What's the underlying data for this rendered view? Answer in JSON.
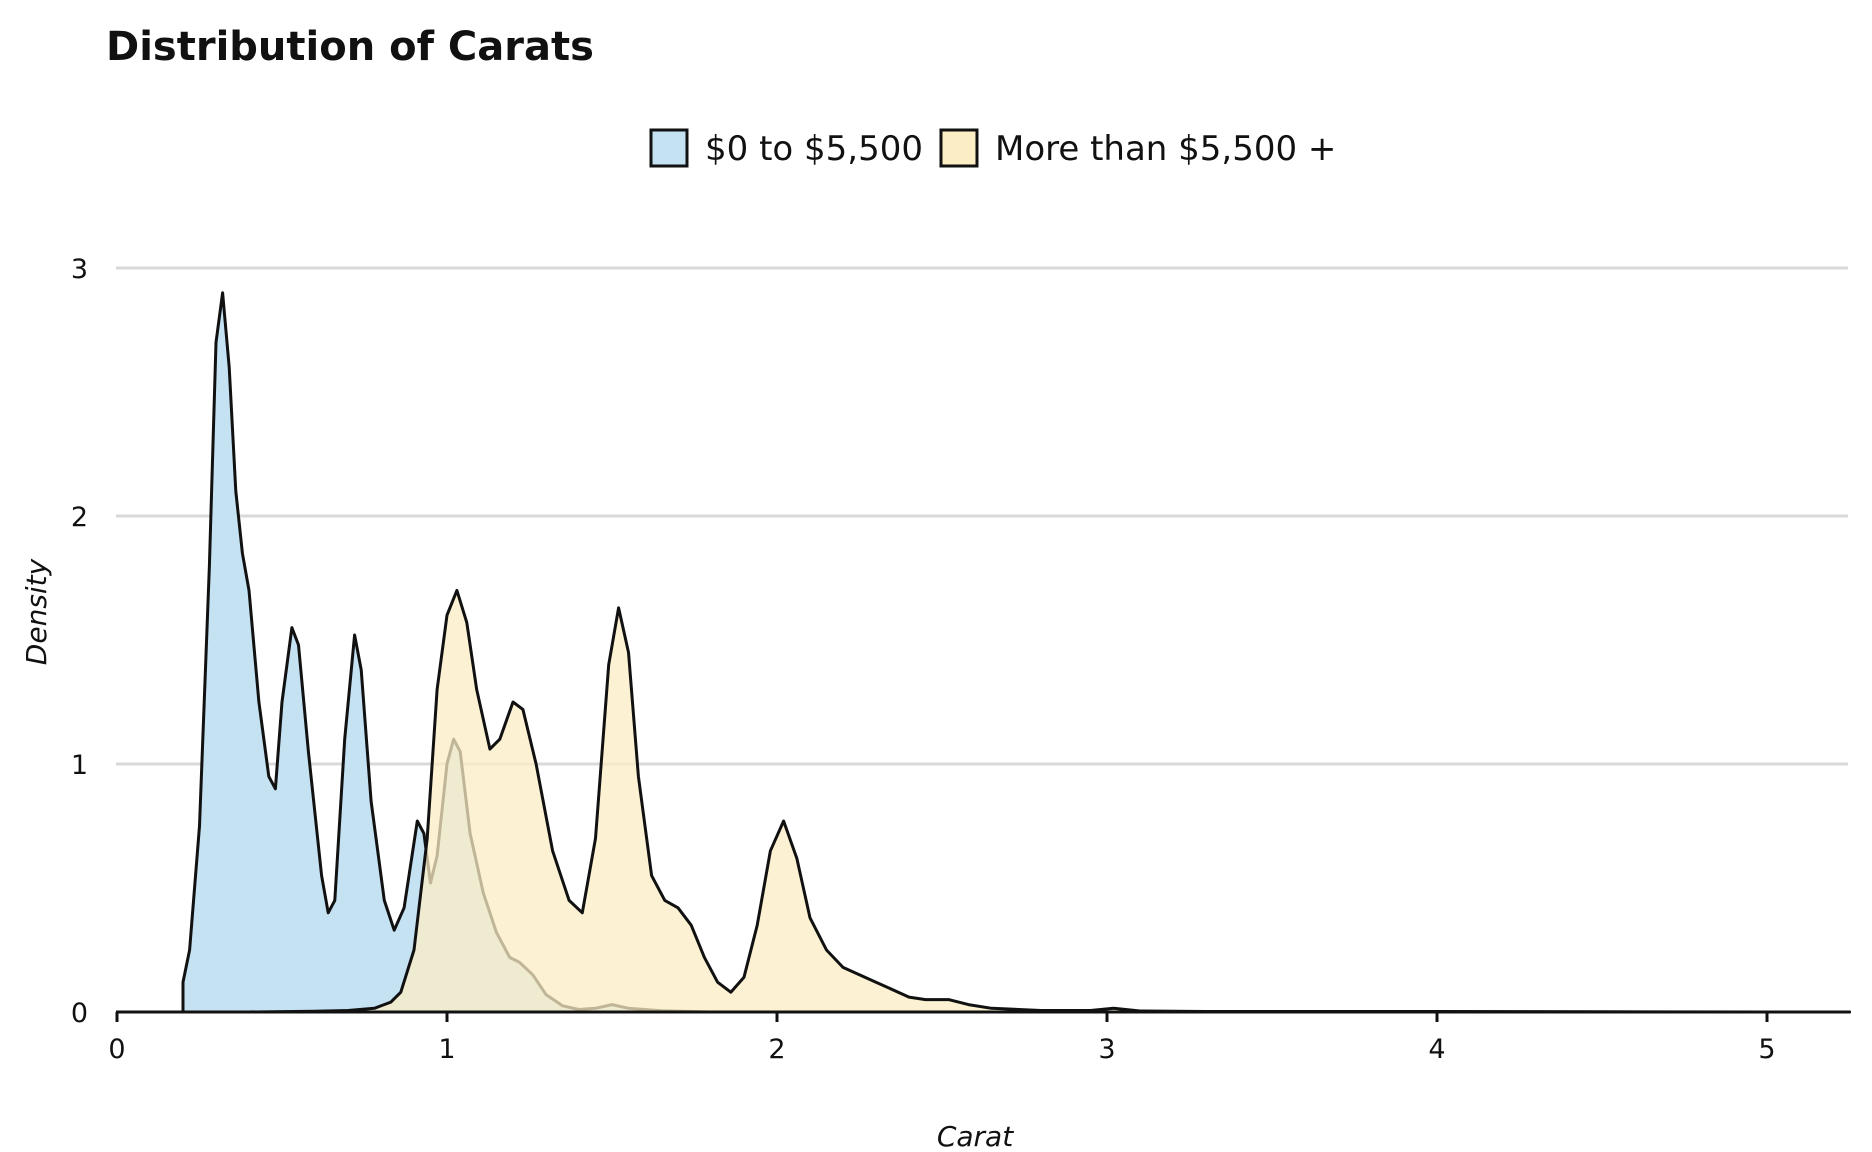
{
  "chart_data": {
    "type": "area",
    "title": "Distribution of Carats",
    "xlabel": "Carat",
    "ylabel": "Density",
    "xlim": [
      0,
      5.25
    ],
    "ylim": [
      0,
      3
    ],
    "x_ticks": [
      0,
      1,
      2,
      3,
      4,
      5
    ],
    "y_ticks": [
      0,
      1,
      2,
      3
    ],
    "grid": "horizontal",
    "legend_position": "top",
    "series": [
      {
        "name": "$0 to $5,500",
        "color": "#c5e2f3",
        "points": [
          [
            0.2,
            0
          ],
          [
            0.2,
            0.12
          ],
          [
            0.22,
            0.25
          ],
          [
            0.25,
            0.75
          ],
          [
            0.28,
            1.8
          ],
          [
            0.3,
            2.7
          ],
          [
            0.32,
            2.9
          ],
          [
            0.34,
            2.6
          ],
          [
            0.36,
            2.1
          ],
          [
            0.38,
            1.85
          ],
          [
            0.4,
            1.7
          ],
          [
            0.43,
            1.25
          ],
          [
            0.46,
            0.95
          ],
          [
            0.48,
            0.9
          ],
          [
            0.5,
            1.25
          ],
          [
            0.53,
            1.55
          ],
          [
            0.55,
            1.48
          ],
          [
            0.58,
            1.05
          ],
          [
            0.62,
            0.55
          ],
          [
            0.64,
            0.4
          ],
          [
            0.66,
            0.45
          ],
          [
            0.69,
            1.1
          ],
          [
            0.72,
            1.52
          ],
          [
            0.74,
            1.38
          ],
          [
            0.77,
            0.85
          ],
          [
            0.81,
            0.45
          ],
          [
            0.84,
            0.33
          ],
          [
            0.87,
            0.42
          ],
          [
            0.91,
            0.77
          ],
          [
            0.93,
            0.72
          ],
          [
            0.95,
            0.52
          ],
          [
            0.97,
            0.63
          ],
          [
            1.0,
            1.0
          ],
          [
            1.02,
            1.1
          ],
          [
            1.04,
            1.05
          ],
          [
            1.07,
            0.72
          ],
          [
            1.11,
            0.48
          ],
          [
            1.15,
            0.32
          ],
          [
            1.19,
            0.22
          ],
          [
            1.22,
            0.2
          ],
          [
            1.26,
            0.15
          ],
          [
            1.3,
            0.07
          ],
          [
            1.35,
            0.025
          ],
          [
            1.4,
            0.01
          ],
          [
            1.45,
            0.015
          ],
          [
            1.5,
            0.03
          ],
          [
            1.55,
            0.015
          ],
          [
            1.65,
            0.005
          ],
          [
            1.8,
            0
          ],
          [
            2.0,
            0
          ],
          [
            3.0,
            0
          ],
          [
            4.0,
            0
          ],
          [
            5.0,
            0
          ],
          [
            5.25,
            0
          ]
        ]
      },
      {
        "name": "More than $5,500 +",
        "color": "#fbeec4",
        "points": [
          [
            0.4,
            0
          ],
          [
            0.6,
            0.003
          ],
          [
            0.7,
            0.006
          ],
          [
            0.78,
            0.015
          ],
          [
            0.83,
            0.04
          ],
          [
            0.86,
            0.08
          ],
          [
            0.9,
            0.25
          ],
          [
            0.94,
            0.7
          ],
          [
            0.97,
            1.3
          ],
          [
            1.0,
            1.6
          ],
          [
            1.03,
            1.7
          ],
          [
            1.06,
            1.57
          ],
          [
            1.09,
            1.3
          ],
          [
            1.13,
            1.06
          ],
          [
            1.16,
            1.1
          ],
          [
            1.2,
            1.25
          ],
          [
            1.23,
            1.22
          ],
          [
            1.27,
            1.0
          ],
          [
            1.32,
            0.65
          ],
          [
            1.37,
            0.45
          ],
          [
            1.41,
            0.4
          ],
          [
            1.45,
            0.7
          ],
          [
            1.49,
            1.4
          ],
          [
            1.52,
            1.63
          ],
          [
            1.55,
            1.45
          ],
          [
            1.58,
            0.95
          ],
          [
            1.62,
            0.55
          ],
          [
            1.66,
            0.45
          ],
          [
            1.7,
            0.42
          ],
          [
            1.74,
            0.35
          ],
          [
            1.78,
            0.22
          ],
          [
            1.82,
            0.12
          ],
          [
            1.86,
            0.08
          ],
          [
            1.9,
            0.14
          ],
          [
            1.94,
            0.35
          ],
          [
            1.98,
            0.65
          ],
          [
            2.02,
            0.77
          ],
          [
            2.06,
            0.62
          ],
          [
            2.1,
            0.38
          ],
          [
            2.15,
            0.25
          ],
          [
            2.2,
            0.18
          ],
          [
            2.3,
            0.12
          ],
          [
            2.4,
            0.06
          ],
          [
            2.45,
            0.05
          ],
          [
            2.52,
            0.05
          ],
          [
            2.58,
            0.03
          ],
          [
            2.65,
            0.015
          ],
          [
            2.8,
            0.006
          ],
          [
            2.95,
            0.006
          ],
          [
            3.02,
            0.015
          ],
          [
            3.1,
            0.004
          ],
          [
            3.3,
            0.002
          ],
          [
            3.5,
            0.002
          ],
          [
            4.0,
            0.002
          ],
          [
            4.5,
            0.001
          ],
          [
            5.0,
            0
          ],
          [
            5.25,
            0
          ]
        ]
      }
    ]
  }
}
